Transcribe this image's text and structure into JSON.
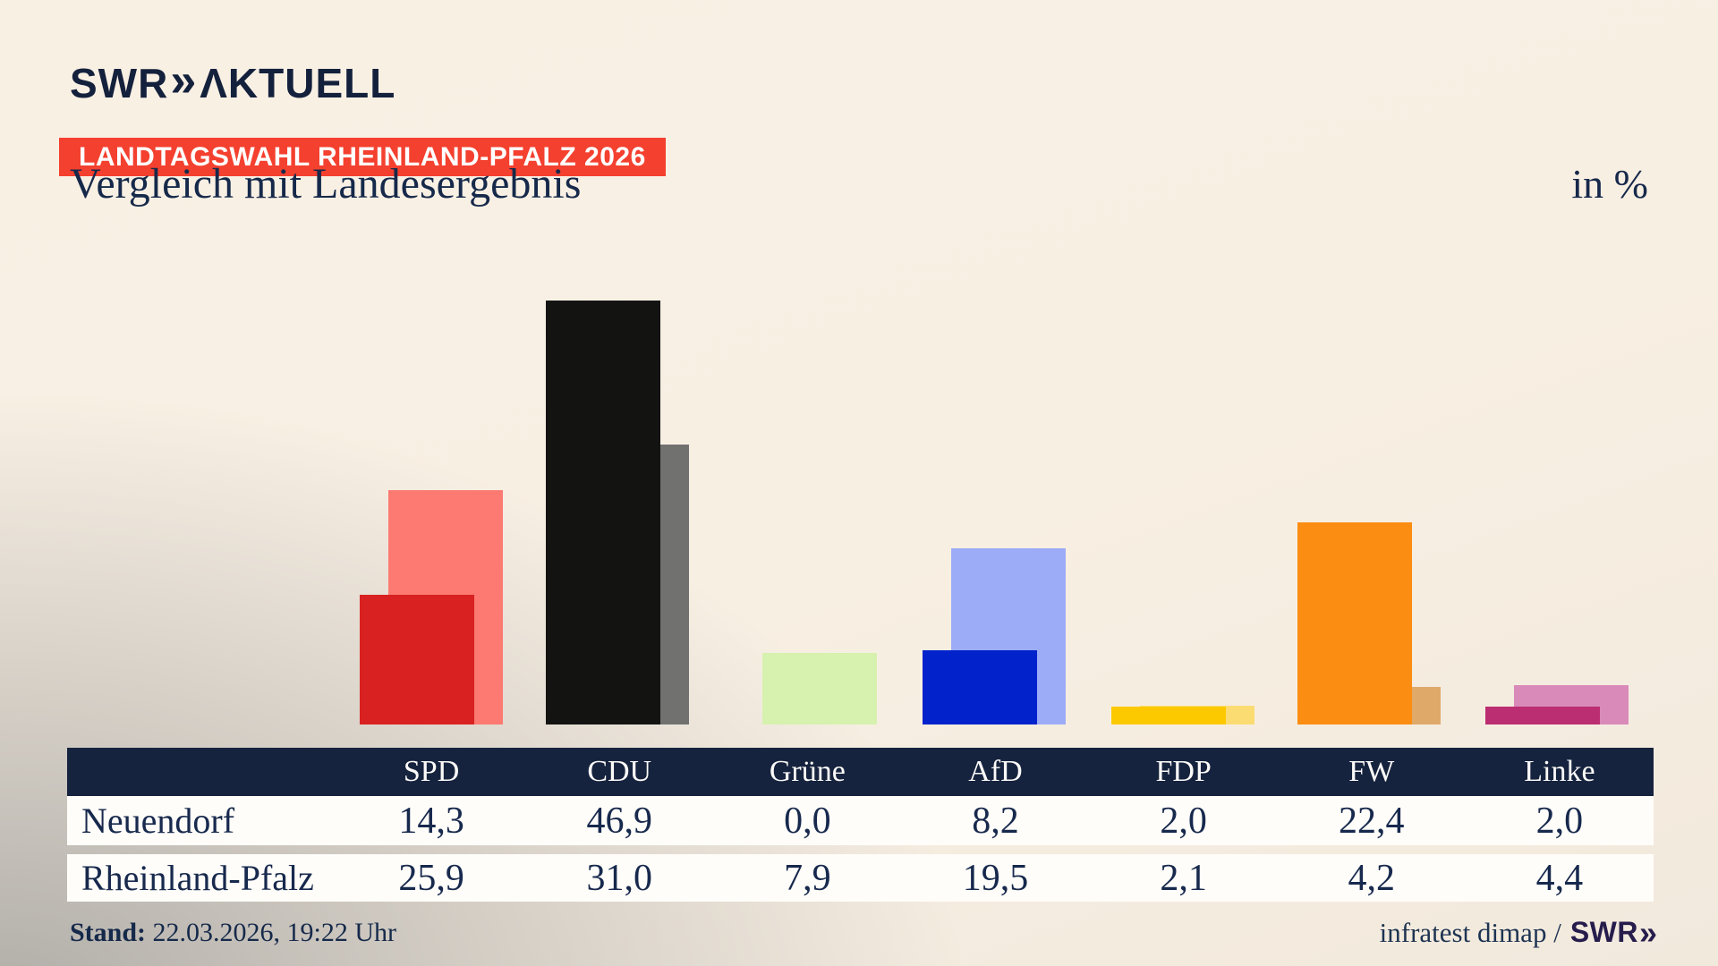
{
  "meta": {
    "brand": "SWR",
    "brand_suffix": "AKTUELL",
    "badge": "LANDTAGSWAHL RHEINLAND-PFALZ 2026",
    "title": "Vergleich mit Landesergebnis",
    "unit_label": "in %",
    "stand_label": "Stand:",
    "stand_value": "22.03.2026, 19:22 Uhr",
    "source_text": "infratest dimap /",
    "source_brand": "SWR"
  },
  "colors": {
    "badge_red": "#f4402f",
    "navy_text": "#16294a",
    "table_header_bg": "#16233e",
    "row_bg": "#fffdf9"
  },
  "chart_data": {
    "type": "bar",
    "title": "Vergleich mit Landesergebnis",
    "unit": "%",
    "categories": [
      "SPD",
      "CDU",
      "Grüne",
      "AfD",
      "FDP",
      "FW",
      "Linke"
    ],
    "series": [
      {
        "name": "Neuendorf",
        "values": [
          14.3,
          46.9,
          0.0,
          8.2,
          2.0,
          22.4,
          2.0
        ],
        "colors": [
          "#d82120",
          "#131312",
          "#4aa32f",
          "#0222cb",
          "#fcc900",
          "#fb8d12",
          "#bb2e72"
        ]
      },
      {
        "name": "Rheinland-Pfalz",
        "values": [
          25.9,
          31.0,
          7.9,
          19.5,
          2.1,
          4.2,
          4.4
        ],
        "colors": [
          "#fc7a72",
          "#717170",
          "#d6f2ae",
          "#9dacf7",
          "#fbdc73",
          "#dfa96a",
          "#da8ab9"
        ]
      }
    ],
    "ylim": [
      0,
      50
    ],
    "grid": false,
    "legend_position": "table-below"
  },
  "table": {
    "columns": [
      "SPD",
      "CDU",
      "Grüne",
      "AfD",
      "FDP",
      "FW",
      "Linke"
    ],
    "rows": [
      {
        "label": "Neuendorf",
        "values": [
          "14,3",
          "46,9",
          "0,0",
          "8,2",
          "2,0",
          "22,4",
          "2,0"
        ]
      },
      {
        "label": "Rheinland-Pfalz",
        "values": [
          "25,9",
          "31,0",
          "7,9",
          "19,5",
          "2,1",
          "4,2",
          "4,4"
        ]
      }
    ]
  }
}
